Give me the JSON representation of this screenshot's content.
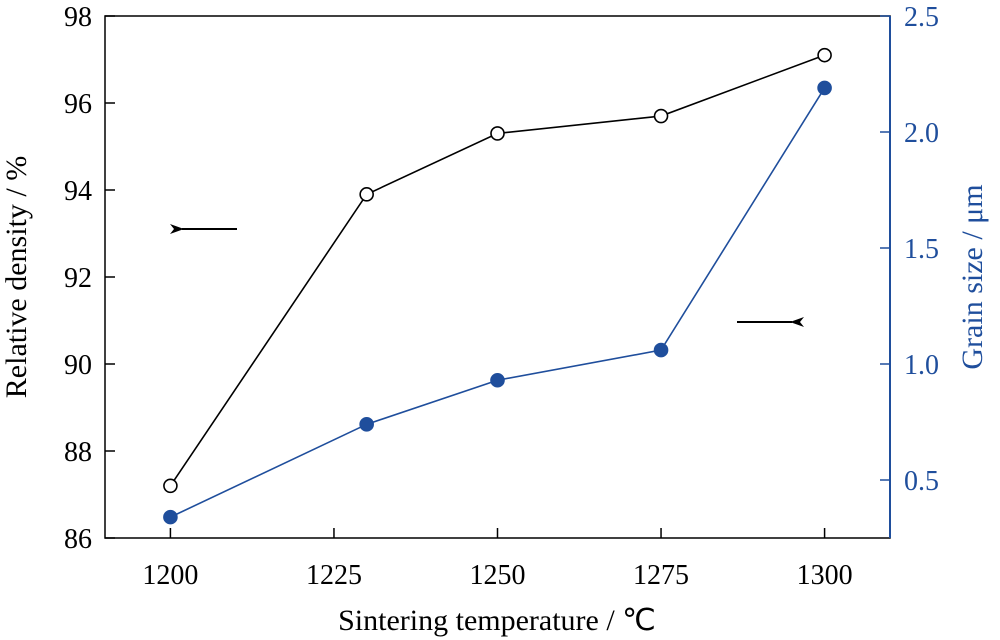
{
  "chart_data": {
    "type": "line",
    "xlabel": "Sintering temperature / ℃",
    "ylabel_left": "Relative density / %",
    "ylabel_right": "Grain size / μm",
    "xlim": [
      1190,
      1310
    ],
    "ylim_left": [
      86,
      98
    ],
    "ylim_right": [
      0.25,
      2.5
    ],
    "x_ticks": [
      1200,
      1225,
      1250,
      1275,
      1300
    ],
    "y_left_ticks": [
      86,
      88,
      90,
      92,
      94,
      96,
      98
    ],
    "y_right_ticks": [
      0.5,
      1.0,
      1.5,
      2.0,
      2.5
    ],
    "y_left_tick_labels": [
      "86",
      "88",
      "90",
      "92",
      "94",
      "96",
      "98"
    ],
    "y_right_tick_labels": [
      "0.5",
      "1.0",
      "1.5",
      "2.0",
      "2.5"
    ],
    "series": [
      {
        "axis": "left",
        "marker": "open-circle",
        "color": "#000000",
        "x": [
          1200,
          1230,
          1250,
          1275,
          1300
        ],
        "values": [
          87.2,
          93.9,
          95.3,
          95.7,
          97.1
        ]
      },
      {
        "axis": "right",
        "marker": "filled-circle",
        "color": "#1f4e9c",
        "x": [
          1200,
          1230,
          1250,
          1275,
          1300
        ],
        "values": [
          0.34,
          0.74,
          0.93,
          1.06,
          2.19
        ]
      }
    ],
    "annotations": [
      {
        "type": "arrow",
        "direction": "left",
        "points_to": "left axis",
        "color": "#000000"
      },
      {
        "type": "arrow",
        "direction": "right",
        "points_to": "right axis",
        "color": "#000000"
      }
    ],
    "grid": false,
    "legend": "none"
  }
}
